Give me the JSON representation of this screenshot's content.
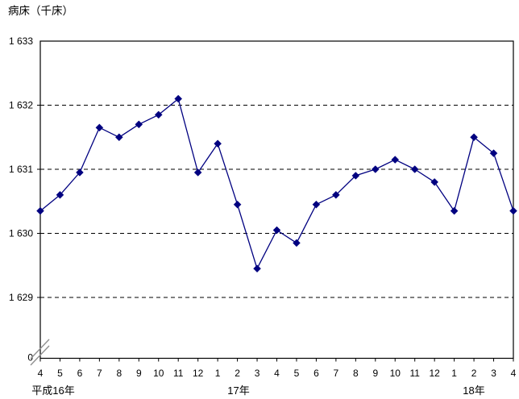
{
  "chart_data": {
    "type": "line",
    "title": "病床（千床）",
    "background": "#ffffff",
    "legend": "none",
    "y_axis": {
      "axis_label": "病床（千床）",
      "ticks": [
        {
          "label": "1 633",
          "value": 1633
        },
        {
          "label": "1 632",
          "value": 1632
        },
        {
          "label": "1 631",
          "value": 1631
        },
        {
          "label": "1 630",
          "value": 1630
        },
        {
          "label": "1 629",
          "value": 1629
        },
        {
          "label": "0",
          "value": null
        }
      ],
      "gridlines_at": [
        1632,
        1631,
        1630,
        1629
      ],
      "gridline_style": "dashed",
      "range_top": 1633,
      "axis_break_above_zero": true
    },
    "x_axis": {
      "tick_labels": [
        "4",
        "5",
        "6",
        "7",
        "8",
        "9",
        "10",
        "11",
        "12",
        "1",
        "2",
        "3",
        "4",
        "5",
        "6",
        "7",
        "8",
        "9",
        "10",
        "11",
        "12",
        "1",
        "2",
        "3",
        "4"
      ],
      "era_labels": [
        "平成16年",
        "17年",
        "18年"
      ]
    },
    "series": [
      {
        "name": "病床",
        "color": "#000080",
        "marker": "diamond",
        "values": [
          1630.35,
          1630.6,
          1630.95,
          1631.65,
          1631.5,
          1631.7,
          1631.85,
          1632.1,
          1630.95,
          1631.4,
          1630.45,
          1629.45,
          1630.05,
          1629.85,
          1630.45,
          1630.6,
          1630.9,
          1631.0,
          1631.15,
          1631.0,
          1630.8,
          1630.35,
          1631.5,
          1631.25,
          1630.35
        ]
      }
    ]
  }
}
